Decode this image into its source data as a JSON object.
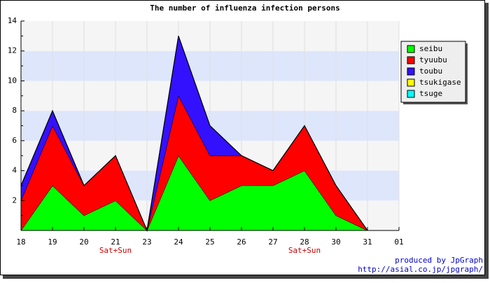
{
  "chart_data": {
    "type": "stacked_area",
    "title": "The number of influenza infection persons",
    "categories": [
      "18",
      "19",
      "20",
      "21",
      "23",
      "24",
      "25",
      "26",
      "27",
      "28",
      "30",
      "31",
      "01"
    ],
    "category_notes": [
      null,
      null,
      null,
      "Sat+Sun",
      null,
      null,
      null,
      null,
      null,
      "Sat+Sun",
      null,
      null,
      null
    ],
    "series": [
      {
        "name": "seibu",
        "color": "#00ff00",
        "values": [
          0,
          3,
          1,
          2,
          0,
          5,
          2,
          3,
          3,
          4,
          1,
          0,
          null
        ]
      },
      {
        "name": "tyuubu",
        "color": "#ff0000",
        "values": [
          2,
          4,
          2,
          3,
          0,
          4,
          3,
          2,
          1,
          3,
          2,
          0,
          null
        ]
      },
      {
        "name": "toubu",
        "color": "#3311ff",
        "values": [
          1,
          1,
          0,
          0,
          0,
          4,
          2,
          0,
          0,
          0,
          0,
          0,
          null
        ]
      },
      {
        "name": "tsukigase",
        "color": "#ffff00",
        "values": [
          0,
          0,
          0,
          0,
          0,
          0,
          0,
          0,
          0,
          0,
          0,
          0,
          null
        ]
      },
      {
        "name": "tsuge",
        "color": "#00ffff",
        "values": [
          0,
          0,
          0,
          0,
          0,
          0,
          0,
          0,
          0,
          0,
          0,
          0,
          null
        ]
      }
    ],
    "ylim": [
      0,
      14
    ],
    "yticks": [
      2,
      4,
      6,
      8,
      10,
      12,
      14
    ],
    "grid": true,
    "legend": "right",
    "credits": [
      "produced by JpGraph",
      "http://asial.co.jp/jpgraph/"
    ]
  }
}
